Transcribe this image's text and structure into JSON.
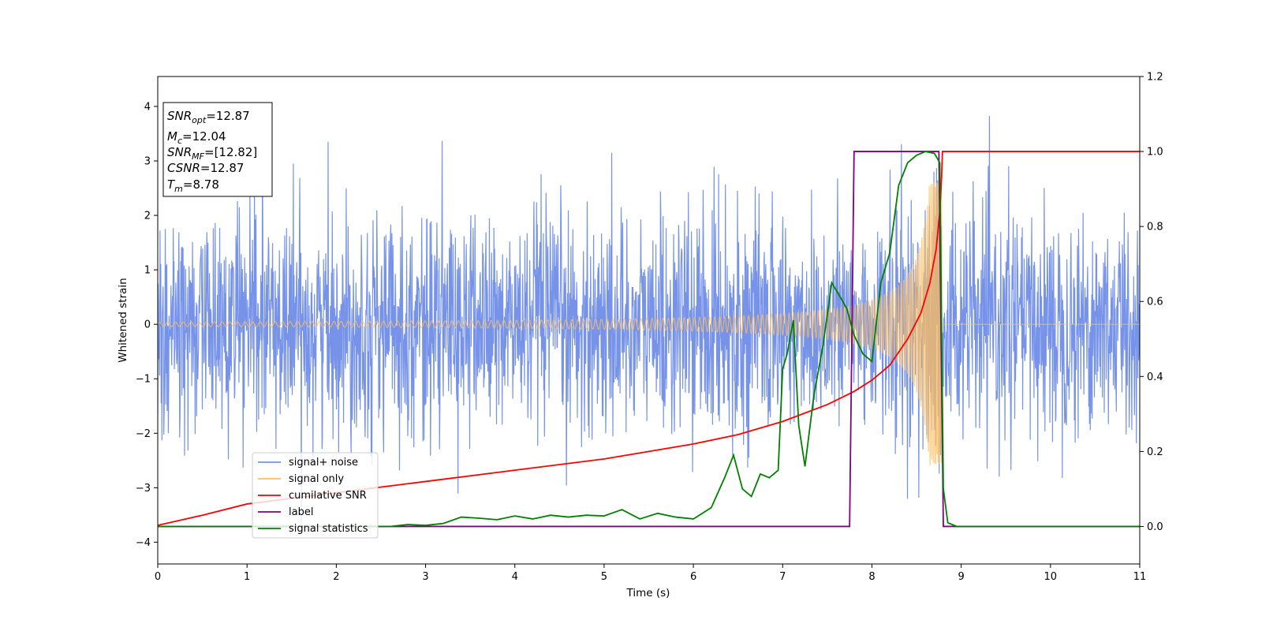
{
  "chart_data": {
    "type": "line",
    "xlabel": "Time (s)",
    "ylabel": "Whitened strain",
    "xlim": [
      0,
      11
    ],
    "ylim_left": [
      -4.4,
      4.55
    ],
    "ylim_right": [
      -0.1,
      1.2
    ],
    "x_ticks": [
      "0",
      "1",
      "2",
      "3",
      "4",
      "5",
      "6",
      "7",
      "8",
      "9",
      "10",
      "11"
    ],
    "y_ticks_left": [
      "−4",
      "−3",
      "−2",
      "−1",
      "0",
      "1",
      "2",
      "3",
      "4"
    ],
    "y_ticks_right": [
      "0.0",
      "0.2",
      "0.4",
      "0.6",
      "0.8",
      "1.0",
      "1.2"
    ],
    "grid": false,
    "legend_position": "lower-left",
    "info_box": {
      "snr_opt": {
        "name": "SNR",
        "sub": "opt",
        "value": "=12.87"
      },
      "mc": {
        "name": "M",
        "sub": "c",
        "value": "=12.04"
      },
      "snr_mf": {
        "name": "SNR",
        "sub": "MF",
        "value": "=[12.82]"
      },
      "csnr": {
        "name": "CSNR",
        "value": "=12.87"
      },
      "tm": {
        "name": "T",
        "sub": "m",
        "value": "=8.78"
      }
    },
    "series": [
      {
        "name": "signal+ noise",
        "color": "#4169e1",
        "axis": "left",
        "noise_std": 1.0,
        "max_abs": 4.2
      },
      {
        "name": "signal only",
        "color": "#ffbe5c",
        "axis": "left",
        "chirp_start": 0.0,
        "chirp_end": 8.78,
        "peak_amplitude": 2.6
      },
      {
        "name": "cumilative SNR",
        "color": "#ff0000",
        "axis": "right",
        "x": [
          0,
          0.5,
          1,
          2,
          3,
          4,
          5,
          6,
          6.5,
          7,
          7.5,
          7.8,
          8.0,
          8.2,
          8.4,
          8.55,
          8.65,
          8.72,
          8.76,
          8.78,
          8.79,
          11
        ],
        "values": [
          0.003,
          0.03,
          0.06,
          0.09,
          0.12,
          0.15,
          0.18,
          0.22,
          0.245,
          0.28,
          0.325,
          0.36,
          0.39,
          0.43,
          0.5,
          0.57,
          0.65,
          0.74,
          0.84,
          0.93,
          1.0,
          1.0
        ]
      },
      {
        "name": "label",
        "color": "#800080",
        "axis": "right",
        "x": [
          0,
          7.75,
          7.8,
          8.75,
          8.8,
          11
        ],
        "values": [
          0,
          0,
          1,
          1,
          0,
          0
        ]
      },
      {
        "name": "signal statistics",
        "color": "#008000",
        "axis": "right",
        "x": [
          0,
          2.6,
          2.8,
          3.0,
          3.2,
          3.4,
          3.6,
          3.8,
          4.0,
          4.2,
          4.4,
          4.6,
          4.8,
          5.0,
          5.2,
          5.4,
          5.6,
          5.8,
          6.0,
          6.2,
          6.35,
          6.45,
          6.55,
          6.65,
          6.75,
          6.85,
          6.95,
          7.0,
          7.05,
          7.12,
          7.18,
          7.25,
          7.35,
          7.45,
          7.55,
          7.65,
          7.72,
          7.8,
          7.9,
          8.0,
          8.1,
          8.2,
          8.3,
          8.4,
          8.5,
          8.6,
          8.7,
          8.76,
          8.8,
          8.85,
          8.95,
          11
        ],
        "values": [
          0.0,
          0.0,
          0.005,
          0.003,
          0.008,
          0.025,
          0.022,
          0.018,
          0.028,
          0.02,
          0.03,
          0.025,
          0.03,
          0.028,
          0.045,
          0.02,
          0.035,
          0.025,
          0.02,
          0.05,
          0.13,
          0.19,
          0.1,
          0.08,
          0.14,
          0.13,
          0.15,
          0.42,
          0.46,
          0.55,
          0.27,
          0.16,
          0.35,
          0.48,
          0.65,
          0.61,
          0.58,
          0.51,
          0.46,
          0.44,
          0.65,
          0.73,
          0.91,
          0.97,
          0.99,
          1.0,
          0.995,
          0.97,
          0.1,
          0.01,
          0.0,
          0.0
        ]
      }
    ]
  }
}
